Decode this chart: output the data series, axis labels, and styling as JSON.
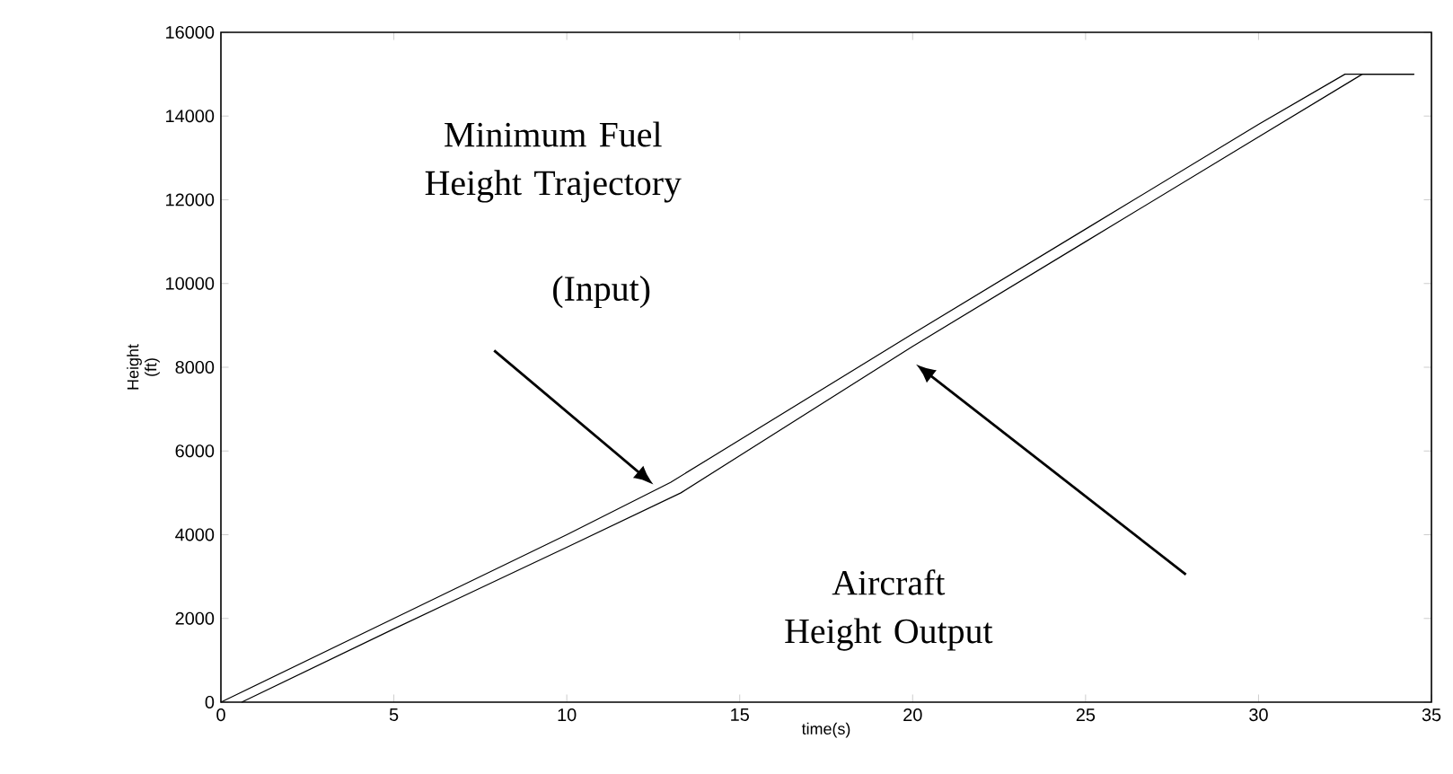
{
  "chart_data": {
    "type": "line",
    "xlabel": "time(s)",
    "ylabel": "Height (ft)",
    "xlim": [
      0,
      35
    ],
    "ylim": [
      0,
      16000
    ],
    "xticks": [
      0,
      5,
      10,
      15,
      20,
      25,
      30,
      35
    ],
    "yticks": [
      0,
      2000,
      4000,
      6000,
      8000,
      10000,
      12000,
      14000,
      16000
    ],
    "marker": "none",
    "line_style": "solid",
    "annotations": [
      "Minimum Fuel Height Trajectory",
      "(Input)",
      "Aircraft Height Output"
    ],
    "series": [
      {
        "color": "#000000",
        "x": [
          0,
          5,
          10,
          13,
          20,
          25,
          30,
          32.5,
          34.5
        ],
        "values": [
          0,
          2000,
          4000,
          5250,
          8800,
          11300,
          13800,
          15000,
          15000
        ]
      },
      {
        "color": "#000000",
        "x": [
          0.6,
          5,
          10,
          13.3,
          20,
          25,
          30,
          33,
          34.5
        ],
        "values": [
          0,
          1750,
          3700,
          5000,
          8500,
          11000,
          13500,
          15000,
          15000
        ]
      }
    ]
  }
}
